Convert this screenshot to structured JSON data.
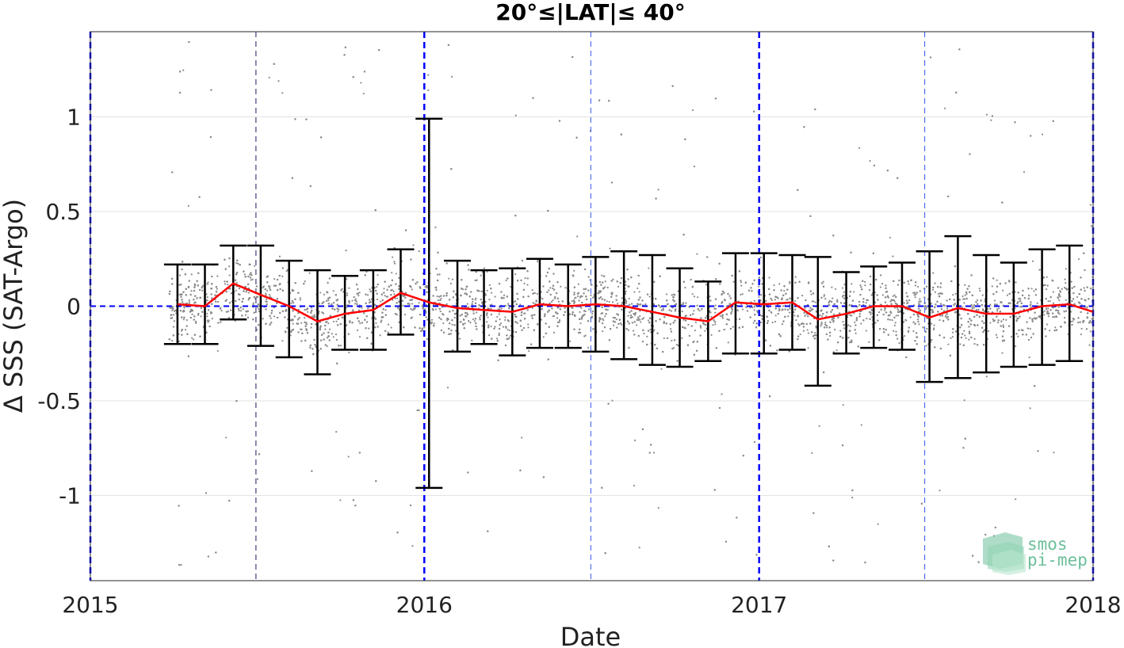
{
  "chart_data": {
    "type": "scatter",
    "title": "20°≤|LAT|≤ 40°",
    "xlabel": "Date",
    "ylabel": "Δ SSS (SAT-Argo)",
    "xlim": [
      "2015-01-01",
      "2018-01-01"
    ],
    "ylim": [
      -1.45,
      1.45
    ],
    "x_ticks": [
      "2015",
      "2016",
      "2017",
      "2018"
    ],
    "y_ticks": [
      "1",
      "0.5",
      "0",
      "-0.5",
      "-1"
    ],
    "y_tick_values": [
      1,
      0.5,
      0,
      -0.5,
      -1
    ],
    "grid": true,
    "colors": {
      "scatter": "#8c8c8c",
      "mean_line": "#ff0000",
      "error_bars": "#000000",
      "zero_line": "#0000ff",
      "year_lines": "#0000ff",
      "logo": "#6cbf9a"
    },
    "year_lines": [
      "2015-01-01",
      "2016-01-01",
      "2017-01-01",
      "2018-01-01"
    ],
    "mid_year_lines": [
      "2015-07-01",
      "2016-07-01",
      "2017-07-01"
    ],
    "series": [
      {
        "x": [
          "2015-04-01",
          "2015-05-01",
          "2015-06-01",
          "2015-07-01",
          "2015-08-01",
          "2015-09-01",
          "2015-10-01",
          "2015-11-01",
          "2015-12-01",
          "2016-01-01",
          "2016-02-01",
          "2016-03-01",
          "2016-04-01",
          "2016-05-01",
          "2016-06-01",
          "2016-07-01",
          "2016-08-01",
          "2016-09-01",
          "2016-10-01",
          "2016-11-01",
          "2016-12-01",
          "2017-01-01",
          "2017-02-01",
          "2017-03-01",
          "2017-04-01",
          "2017-05-01",
          "2017-06-01",
          "2017-07-01",
          "2017-08-01",
          "2017-09-01",
          "2017-10-01",
          "2017-11-01",
          "2017-12-01"
        ],
        "mean": [
          0.01,
          0.0,
          0.12,
          0.06,
          0.0,
          -0.08,
          -0.04,
          -0.02,
          0.07,
          0.02,
          -0.01,
          -0.02,
          -0.03,
          0.01,
          0.0,
          0.01,
          0.0,
          -0.03,
          -0.06,
          -0.08,
          0.02,
          0.01,
          0.02,
          -0.07,
          -0.04,
          0.0,
          0.0,
          -0.06,
          -0.01,
          -0.04,
          -0.04,
          0.0,
          0.01
        ],
        "upper": [
          0.22,
          0.22,
          0.32,
          0.32,
          0.24,
          0.19,
          0.16,
          0.19,
          0.3,
          0.99,
          0.24,
          0.19,
          0.2,
          0.25,
          0.22,
          0.26,
          0.29,
          0.27,
          0.2,
          0.13,
          0.28,
          0.28,
          0.27,
          0.26,
          0.18,
          0.21,
          0.23,
          0.29,
          0.37,
          0.27,
          0.23,
          0.3,
          0.32
        ],
        "lower": [
          -0.2,
          -0.2,
          -0.07,
          -0.21,
          -0.27,
          -0.36,
          -0.23,
          -0.23,
          -0.15,
          -0.96,
          -0.24,
          -0.2,
          -0.26,
          -0.22,
          -0.22,
          -0.24,
          -0.28,
          -0.31,
          -0.32,
          -0.29,
          -0.25,
          -0.25,
          -0.23,
          -0.42,
          -0.25,
          -0.22,
          -0.23,
          -0.4,
          -0.38,
          -0.35,
          -0.32,
          -0.31,
          -0.29
        ]
      }
    ],
    "last_mean_point": {
      "x": "2018-01-01",
      "mean": -0.03
    }
  },
  "logo": {
    "line1": "smos",
    "line2": "pi-mep"
  }
}
